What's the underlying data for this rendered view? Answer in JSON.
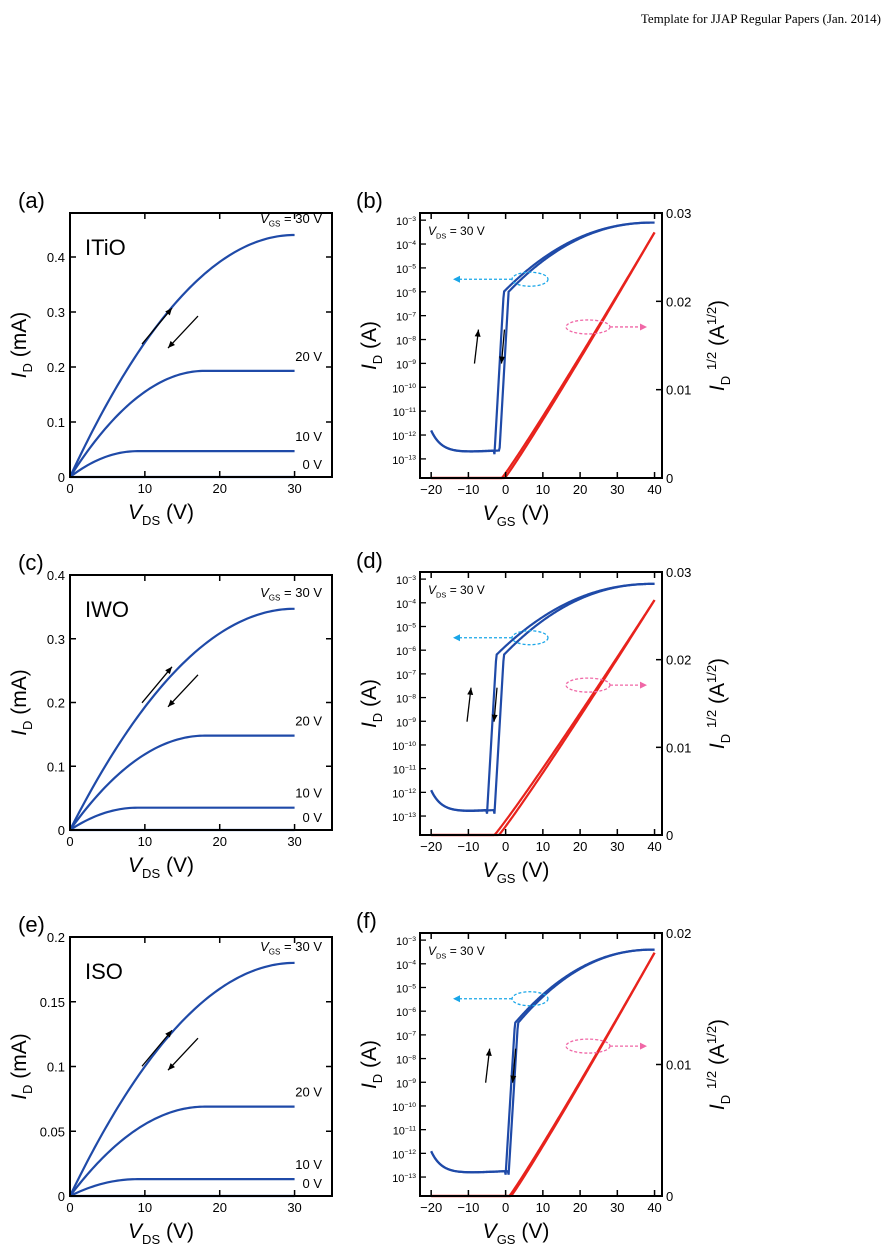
{
  "header": "Template for JJAP Regular Papers (Jan. 2014)",
  "colors": {
    "output": "#1f4aa8",
    "transfer_log": "#1f4aa8",
    "transfer_sqrt": "#e8231d",
    "left_arrow": "#1aa6e8",
    "right_arrow": "#f067a6"
  },
  "chart_data": [
    {
      "panel": "(a)",
      "type": "line",
      "material": "ITiO",
      "xlabel": "V",
      "xlabel_sub": "DS",
      "xunit": "(V)",
      "ylabel": "I",
      "ylabel_sub": "D",
      "yunit": "(mA)",
      "xlim": [
        0,
        35
      ],
      "ylim": [
        0,
        0.48
      ],
      "xticks": [
        0,
        10,
        20,
        30
      ],
      "yticks": [
        0,
        0.1,
        0.2,
        0.3,
        0.4
      ],
      "xtick_labels": [
        "0",
        "10",
        "20",
        "30"
      ],
      "ytick_labels": [
        "0",
        "0.1",
        "0.2",
        "0.3",
        "0.4"
      ],
      "vgs_prefix": "V",
      "vgs_sub": "GS",
      "series": [
        {
          "name": "= 30 V",
          "sat": 0.44,
          "vsat": 30
        },
        {
          "name": "20 V",
          "sat": 0.193,
          "vsat": 18
        },
        {
          "name": "10 V",
          "sat": 0.047,
          "vsat": 9
        },
        {
          "name": "0 V",
          "sat": 0.0,
          "vsat": 5
        }
      ]
    },
    {
      "panel": "(b)",
      "type": "line",
      "xlabel": "V",
      "xlabel_sub": "GS",
      "xunit": "(V)",
      "ylabel": "I",
      "ylabel_sub": "D",
      "yunit": "(A)",
      "y2label": "I",
      "y2label_sub": "D",
      "y2label_sup": "1/2",
      "y2unit": "(A",
      "y2unit_sup": "1/2",
      "y2unit_close": ")",
      "xlim": [
        -23,
        42
      ],
      "ylim_log": [
        -13.8,
        -2.7
      ],
      "y2lim": [
        0,
        0.03
      ],
      "xticks": [
        -20,
        -10,
        0,
        10,
        20,
        30,
        40
      ],
      "xtick_labels": [
        "−20",
        "−10",
        "0",
        "10",
        "20",
        "30",
        "40"
      ],
      "ytick_exponents": [
        -3,
        -4,
        -5,
        -6,
        -7,
        -8,
        -9,
        -10,
        -11,
        -12,
        -13
      ],
      "y2ticks": [
        0,
        0.01,
        0.02,
        0.03
      ],
      "y2tick_labels": [
        "0",
        "0.01",
        "0.02",
        "0.03"
      ],
      "vds_prefix": "V",
      "vds_sub": "DS",
      "vds_value": "= 30 V",
      "log_off": -12.8,
      "log_on_start": -6.0,
      "log_on_end": -3.1,
      "v_on": -3,
      "hyst": 1.3,
      "sqrt_von": -1,
      "sqrt_end": 0.0278
    },
    {
      "panel": "(c)",
      "type": "line",
      "material": "IWO",
      "xlabel": "V",
      "xlabel_sub": "DS",
      "xunit": "(V)",
      "ylabel": "I",
      "ylabel_sub": "D",
      "yunit": "(mA)",
      "xlim": [
        0,
        35
      ],
      "ylim": [
        0,
        0.4
      ],
      "xticks": [
        0,
        10,
        20,
        30
      ],
      "yticks": [
        0,
        0.1,
        0.2,
        0.3,
        0.4
      ],
      "xtick_labels": [
        "0",
        "10",
        "20",
        "30"
      ],
      "ytick_labels": [
        "0",
        "0.1",
        "0.2",
        "0.3",
        "0.4"
      ],
      "vgs_prefix": "V",
      "vgs_sub": "GS",
      "series": [
        {
          "name": "= 30 V",
          "sat": 0.347,
          "vsat": 30
        },
        {
          "name": "20 V",
          "sat": 0.148,
          "vsat": 18
        },
        {
          "name": "10 V",
          "sat": 0.035,
          "vsat": 9
        },
        {
          "name": "0 V",
          "sat": 0.0,
          "vsat": 5
        }
      ]
    },
    {
      "panel": "(d)",
      "type": "line",
      "xlabel": "V",
      "xlabel_sub": "GS",
      "xunit": "(V)",
      "ylabel": "I",
      "ylabel_sub": "D",
      "yunit": "(A)",
      "y2label": "I",
      "y2label_sub": "D",
      "y2label_sup": "1/2",
      "y2unit": "(A",
      "y2unit_sup": "1/2",
      "y2unit_close": ")",
      "xlim": [
        -23,
        42
      ],
      "ylim_log": [
        -13.8,
        -2.7
      ],
      "y2lim": [
        0,
        0.03
      ],
      "xticks": [
        -20,
        -10,
        0,
        10,
        20,
        30,
        40
      ],
      "xtick_labels": [
        "−20",
        "−10",
        "0",
        "10",
        "20",
        "30",
        "40"
      ],
      "ytick_exponents": [
        -3,
        -4,
        -5,
        -6,
        -7,
        -8,
        -9,
        -10,
        -11,
        -12,
        -13
      ],
      "y2ticks": [
        0,
        0.01,
        0.02,
        0.03
      ],
      "y2tick_labels": [
        "0",
        "0.01",
        "0.02",
        "0.03"
      ],
      "vds_prefix": "V",
      "vds_sub": "DS",
      "vds_value": "= 30 V",
      "log_off": -12.9,
      "log_on_start": -6.2,
      "log_on_end": -3.2,
      "v_on": -5,
      "hyst": 2.0,
      "sqrt_von": -3,
      "sqrt_end": 0.0268
    },
    {
      "panel": "(e)",
      "type": "line",
      "material": "ISO",
      "xlabel": "V",
      "xlabel_sub": "DS",
      "xunit": "(V)",
      "ylabel": "I",
      "ylabel_sub": "D",
      "yunit": "(mA)",
      "xlim": [
        0,
        35
      ],
      "ylim": [
        0,
        0.2
      ],
      "xticks": [
        0,
        10,
        20,
        30
      ],
      "yticks": [
        0,
        0.05,
        0.1,
        0.15,
        0.2
      ],
      "xtick_labels": [
        "0",
        "10",
        "20",
        "30"
      ],
      "ytick_labels": [
        "0",
        "0.05",
        "0.1",
        "0.15",
        "0.2"
      ],
      "vgs_prefix": "V",
      "vgs_sub": "GS",
      "series": [
        {
          "name": "= 30 V",
          "sat": 0.18,
          "vsat": 30
        },
        {
          "name": "20 V",
          "sat": 0.069,
          "vsat": 18
        },
        {
          "name": "10 V",
          "sat": 0.013,
          "vsat": 9
        },
        {
          "name": "0 V",
          "sat": 0.0,
          "vsat": 5
        }
      ]
    },
    {
      "panel": "(f)",
      "type": "line",
      "xlabel": "V",
      "xlabel_sub": "GS",
      "xunit": "(V)",
      "ylabel": "I",
      "ylabel_sub": "D",
      "yunit": "(A)",
      "y2label": "I",
      "y2label_sub": "D",
      "y2label_sup": "1/2",
      "y2unit": "(A",
      "y2unit_sup": "1/2",
      "y2unit_close": ")",
      "xlim": [
        -23,
        42
      ],
      "ylim_log": [
        -13.8,
        -2.7
      ],
      "y2lim": [
        0,
        0.02
      ],
      "xticks": [
        -20,
        -10,
        0,
        10,
        20,
        30,
        40
      ],
      "xtick_labels": [
        "−20",
        "−10",
        "0",
        "10",
        "20",
        "30",
        "40"
      ],
      "ytick_exponents": [
        -3,
        -4,
        -5,
        -6,
        -7,
        -8,
        -9,
        -10,
        -11,
        -12,
        -13
      ],
      "y2ticks": [
        0,
        0.01,
        0.02
      ],
      "y2tick_labels": [
        "0",
        "0.01",
        "0.02"
      ],
      "vds_prefix": "V",
      "vds_sub": "DS",
      "vds_value": "= 30 V",
      "log_off": -12.9,
      "log_on_start": -6.5,
      "log_on_end": -3.4,
      "v_on": 0,
      "hyst": 0.8,
      "sqrt_von": 1,
      "sqrt_end": 0.0185
    }
  ]
}
